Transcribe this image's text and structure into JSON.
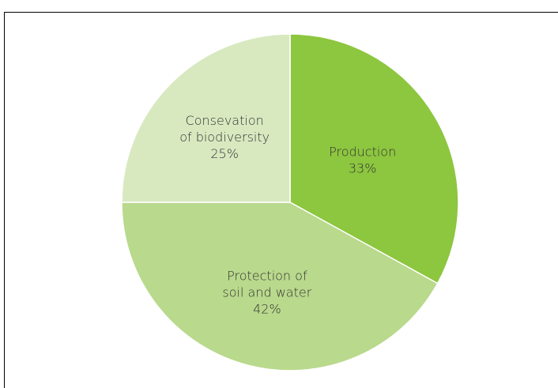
{
  "chart_data": {
    "type": "pie",
    "title": "",
    "start_angle_deg": 0,
    "direction": "clockwise",
    "slices": [
      {
        "label_lines": [
          "Production"
        ],
        "percent_label": "33%",
        "value": 33,
        "color": "#8dc63f"
      },
      {
        "label_lines": [
          "Protection of",
          "soil and water"
        ],
        "percent_label": "42%",
        "value": 42,
        "color": "#b9d98c"
      },
      {
        "label_lines": [
          "Consevation",
          "of biodiversity"
        ],
        "percent_label": "25%",
        "value": 25,
        "color": "#d8e9c0"
      }
    ],
    "legend": "none"
  }
}
